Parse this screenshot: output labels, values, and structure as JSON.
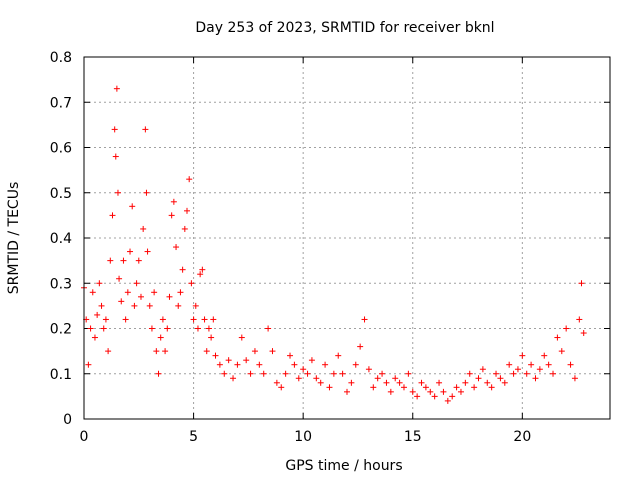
{
  "chart_data": {
    "type": "scatter",
    "title": "Day 253 of 2023, SRMTID for receiver bknl",
    "xlabel": "GPS time / hours",
    "ylabel": "SRMTID / TECUs",
    "xlim": [
      0,
      24
    ],
    "ylim": [
      0,
      0.8
    ],
    "xticks": [
      0,
      5,
      10,
      15,
      20
    ],
    "xtick_labels": [
      "0",
      "5",
      "10",
      "15",
      "20"
    ],
    "yticks": [
      0,
      0.1,
      0.2,
      0.3,
      0.4,
      0.5,
      0.6,
      0.7,
      0.8
    ],
    "ytick_labels": [
      "0",
      "0.1",
      "0.2",
      "0.3",
      "0.4",
      "0.5",
      "0.6",
      "0.7",
      "0.8"
    ],
    "grid": true,
    "marker": "+",
    "color": "#ff0000",
    "series": [
      {
        "name": "SRMTID",
        "x": [
          0.0,
          0.1,
          0.2,
          0.3,
          0.4,
          0.5,
          0.6,
          0.7,
          0.8,
          0.9,
          1.0,
          1.1,
          1.2,
          1.3,
          1.4,
          1.45,
          1.5,
          1.55,
          1.6,
          1.7,
          1.8,
          1.9,
          2.0,
          2.1,
          2.2,
          2.3,
          2.4,
          2.5,
          2.6,
          2.7,
          2.8,
          2.85,
          2.9,
          3.0,
          3.1,
          3.2,
          3.3,
          3.4,
          3.5,
          3.6,
          3.7,
          3.8,
          3.9,
          4.0,
          4.1,
          4.2,
          4.3,
          4.4,
          4.5,
          4.6,
          4.7,
          4.8,
          4.9,
          5.0,
          5.1,
          5.2,
          5.3,
          5.4,
          5.5,
          5.6,
          5.7,
          5.8,
          5.9,
          6.0,
          6.2,
          6.4,
          6.6,
          6.8,
          7.0,
          7.2,
          7.4,
          7.6,
          7.8,
          8.0,
          8.2,
          8.4,
          8.6,
          8.8,
          9.0,
          9.2,
          9.4,
          9.6,
          9.8,
          10.0,
          10.2,
          10.4,
          10.6,
          10.8,
          11.0,
          11.2,
          11.4,
          11.6,
          11.8,
          12.0,
          12.2,
          12.4,
          12.6,
          12.8,
          13.0,
          13.2,
          13.4,
          13.6,
          13.8,
          14.0,
          14.2,
          14.4,
          14.6,
          14.8,
          15.0,
          15.2,
          15.4,
          15.6,
          15.8,
          16.0,
          16.2,
          16.4,
          16.6,
          16.8,
          17.0,
          17.2,
          17.4,
          17.6,
          17.8,
          18.0,
          18.2,
          18.4,
          18.6,
          18.8,
          19.0,
          19.2,
          19.4,
          19.6,
          19.8,
          20.0,
          20.2,
          20.4,
          20.6,
          20.8,
          21.0,
          21.2,
          21.4,
          21.6,
          21.8,
          22.0,
          22.2,
          22.4,
          22.6,
          22.7,
          22.8
        ],
        "y": [
          0.29,
          0.22,
          0.12,
          0.2,
          0.28,
          0.18,
          0.23,
          0.3,
          0.25,
          0.2,
          0.22,
          0.15,
          0.35,
          0.45,
          0.64,
          0.58,
          0.73,
          0.5,
          0.31,
          0.26,
          0.35,
          0.22,
          0.28,
          0.37,
          0.47,
          0.25,
          0.3,
          0.35,
          0.27,
          0.42,
          0.64,
          0.5,
          0.37,
          0.25,
          0.2,
          0.28,
          0.15,
          0.1,
          0.18,
          0.22,
          0.15,
          0.2,
          0.27,
          0.45,
          0.48,
          0.38,
          0.25,
          0.28,
          0.33,
          0.42,
          0.46,
          0.53,
          0.3,
          0.22,
          0.25,
          0.2,
          0.32,
          0.33,
          0.22,
          0.15,
          0.2,
          0.18,
          0.22,
          0.14,
          0.12,
          0.1,
          0.13,
          0.09,
          0.12,
          0.18,
          0.13,
          0.1,
          0.15,
          0.12,
          0.1,
          0.2,
          0.15,
          0.08,
          0.07,
          0.1,
          0.14,
          0.12,
          0.09,
          0.11,
          0.1,
          0.13,
          0.09,
          0.08,
          0.12,
          0.07,
          0.1,
          0.14,
          0.1,
          0.06,
          0.08,
          0.12,
          0.16,
          0.22,
          0.11,
          0.07,
          0.09,
          0.1,
          0.08,
          0.06,
          0.09,
          0.08,
          0.07,
          0.1,
          0.06,
          0.05,
          0.08,
          0.07,
          0.06,
          0.05,
          0.08,
          0.06,
          0.04,
          0.05,
          0.07,
          0.06,
          0.08,
          0.1,
          0.07,
          0.09,
          0.11,
          0.08,
          0.07,
          0.1,
          0.09,
          0.08,
          0.12,
          0.1,
          0.11,
          0.14,
          0.1,
          0.12,
          0.09,
          0.11,
          0.14,
          0.12,
          0.1,
          0.18,
          0.15,
          0.2,
          0.12,
          0.09,
          0.22,
          0.3,
          0.19
        ]
      }
    ]
  }
}
